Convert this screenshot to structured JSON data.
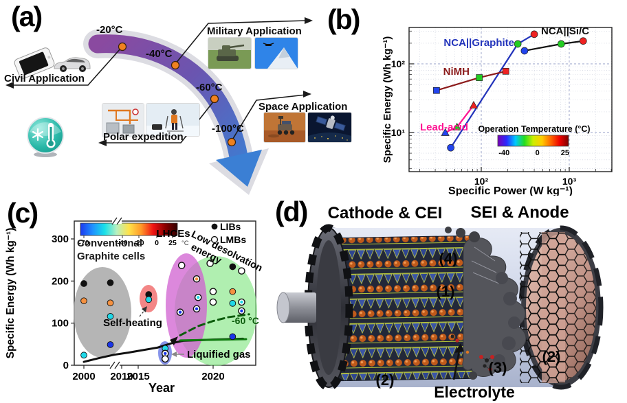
{
  "panels": {
    "a": {
      "label": "(a)",
      "temps": [
        "-20°C",
        "-40°C",
        "-60°C",
        "-100°C"
      ],
      "apps": {
        "civil": "Civil Application",
        "military": "Military Application",
        "polar": "Polar expedition",
        "space": "Space Application"
      }
    },
    "b": {
      "label": "(b)"
    },
    "c": {
      "label": "(c)"
    },
    "d": {
      "label": "(d)",
      "cathode_title": "Cathode & CEI",
      "anode_title": "SEI & Anode",
      "electrolyte": "Electrolyte",
      "num1": "(1)",
      "num2_left": "(2)",
      "num2_right": "(2)",
      "num3": "(3)",
      "num4": "(4)"
    }
  },
  "chart_data": [
    {
      "panel": "b",
      "type": "scatter",
      "xlabel": "Specific Power (W kg⁻¹)",
      "ylabel": "Specific Energy (Wh kg⁻¹)",
      "xscale": "log",
      "yscale": "log",
      "xlim": [
        15,
        3200
      ],
      "ylim": [
        2.7,
        350
      ],
      "xticks": [
        {
          "value": 100,
          "label": "10²"
        },
        {
          "value": 1000,
          "label": "10³"
        }
      ],
      "yticks": [
        {
          "value": 10,
          "label": "10¹"
        },
        {
          "value": 100,
          "label": "10²"
        }
      ],
      "series": [
        {
          "name": "NCA||Graphite",
          "label_color": "#2233bb",
          "line_color": "#2233bb",
          "marker": "circle",
          "points": [
            {
              "x": 45,
              "y": 6,
              "temp": -40,
              "color": "#2244ee"
            },
            {
              "x": 260,
              "y": 195,
              "temp": 0,
              "color": "#22cc22"
            },
            {
              "x": 400,
              "y": 270,
              "temp": 25,
              "color": "#ee2222"
            }
          ]
        },
        {
          "name": "NCA||Si/C",
          "label_color": "#111111",
          "line_color": "#111111",
          "marker": "circle",
          "points": [
            {
              "x": 310,
              "y": 155,
              "temp": -40,
              "color": "#2244ee"
            },
            {
              "x": 810,
              "y": 195,
              "temp": 0,
              "color": "#22cc22"
            },
            {
              "x": 1440,
              "y": 215,
              "temp": 25,
              "color": "#ee2222"
            }
          ]
        },
        {
          "name": "NiMH",
          "label_color": "#8b1a1a",
          "line_color": "#8b1a1a",
          "marker": "square",
          "points": [
            {
              "x": 31,
              "y": 41,
              "temp": -40,
              "color": "#2244ee"
            },
            {
              "x": 95,
              "y": 63,
              "temp": 0,
              "color": "#22cc22"
            },
            {
              "x": 190,
              "y": 78,
              "temp": 25,
              "color": "#ee2222"
            }
          ]
        },
        {
          "name": "Lead-acid",
          "label_color": "#ff1493",
          "line_color": "#ff1493",
          "marker": "triangle",
          "points": [
            {
              "x": 39,
              "y": 10,
              "temp": -40,
              "color": "#2244ee"
            },
            {
              "x": 53,
              "y": 12,
              "temp": 0,
              "color": "#22cc22"
            },
            {
              "x": 82,
              "y": 25,
              "temp": 25,
              "color": "#ee2222"
            }
          ]
        }
      ],
      "colorbar": {
        "title": "Operation Temperature (°C)",
        "ticks": [
          "-40",
          "0",
          "25"
        ],
        "gradient": [
          "#7a00b4",
          "#2a2aff",
          "#00c8ff",
          "#22dd22",
          "#ccee00",
          "#ffcc00",
          "#ff6600",
          "#ee0000",
          "#7a0000"
        ]
      }
    },
    {
      "panel": "c",
      "type": "scatter",
      "xlabel": "Year",
      "ylabel": "Specific Energy (Wh kg⁻¹)",
      "xticks": [
        2000,
        2010,
        2015,
        2020
      ],
      "yticks": [
        0,
        100,
        200,
        300
      ],
      "ylim": [
        0,
        340
      ],
      "x_axis_break": true,
      "colorbar": {
        "ticks": [
          "-70",
          "-40",
          "-20",
          "0",
          "25"
        ],
        "unit": "°C",
        "gradient": [
          "#1c39ee",
          "#1e90ff",
          "#19e0e8",
          "#b8f0c0",
          "#ffe24a",
          "#ff9a2a",
          "#f01414",
          "#8b0000",
          "#300000"
        ]
      },
      "legend": [
        {
          "label": "LIBs",
          "marker": "filled-circle"
        },
        {
          "label": "LMBs",
          "marker": "open-circle"
        }
      ],
      "regions": [
        {
          "name": "Conventional Graphite cells",
          "color": "#a8a8a8"
        },
        {
          "name": "LHCEs",
          "color": "#d060d0"
        },
        {
          "name": "Low desolvation energy",
          "color": "#8ee88e"
        },
        {
          "name": "Self-heating",
          "color": "#f28080"
        },
        {
          "name": "Liquified gas",
          "color": "#7a88e8"
        }
      ],
      "annotations": {
        "conventional_line1": "Conventional",
        "conventional_line2": "Graphite cells",
        "lhces": "LHCEs",
        "low_desolvation_line1": "Low desolvation",
        "low_desolvation_line2": "energy",
        "self_heating": "Self-heating",
        "liquified_gas": "Liquified gas",
        "dashed_curve_label": "-60 °C"
      },
      "points": [
        {
          "year": 2000,
          "E": 194,
          "color": "#111111",
          "open": false
        },
        {
          "year": 2000,
          "E": 153,
          "color": "#f59140",
          "open": false
        },
        {
          "year": 2000,
          "E": 24,
          "color": "#20d8e8",
          "open": false
        },
        {
          "year": 2007,
          "E": 196,
          "color": "#111111",
          "open": false
        },
        {
          "year": 2007,
          "E": 148,
          "color": "#f59140",
          "open": false
        },
        {
          "year": 2007,
          "E": 116,
          "color": "#20d8e8",
          "open": false
        },
        {
          "year": 2007,
          "E": 49,
          "color": "#1a35e8",
          "open": false
        },
        {
          "year": 2015.7,
          "E": 168,
          "color": "#111111",
          "open": false
        },
        {
          "year": 2015.7,
          "E": 156,
          "color": "#20d8e8",
          "open": false
        },
        {
          "year": 2016.8,
          "E": 40,
          "color": "#20d8e8",
          "open": false
        },
        {
          "year": 2016.8,
          "E": 28,
          "color": "#1a35e8",
          "open": true
        },
        {
          "year": 2016.8,
          "E": 15,
          "color": "white",
          "open": true
        },
        {
          "year": 2017.9,
          "E": 237,
          "color": "white",
          "open": true
        },
        {
          "year": 2017.8,
          "E": 126,
          "color": "#1a35e8",
          "open": true
        },
        {
          "year": 2018.9,
          "E": 205,
          "color": "#f59140",
          "open": true
        },
        {
          "year": 2019,
          "E": 161,
          "color": "#20d8e8",
          "open": true
        },
        {
          "year": 2018.9,
          "E": 134,
          "color": "#1a35e8",
          "open": true
        },
        {
          "year": 2019.8,
          "E": 242,
          "color": "white",
          "open": true
        },
        {
          "year": 2020,
          "E": 175,
          "color": "white",
          "open": true
        },
        {
          "year": 2020,
          "E": 150,
          "color": "white",
          "open": true
        },
        {
          "year": 2021.3,
          "E": 234,
          "color": "#111111",
          "open": false
        },
        {
          "year": 2021.3,
          "E": 175,
          "color": "#f59140",
          "open": false
        },
        {
          "year": 2021.3,
          "E": 147,
          "color": "#20d8e8",
          "open": false
        },
        {
          "year": 2021.9,
          "E": 224,
          "color": "white",
          "open": true
        },
        {
          "year": 2021.9,
          "E": 150,
          "color": "#20d8e8",
          "open": true
        },
        {
          "year": 2021.9,
          "E": 129,
          "color": "#1a35e8",
          "open": true
        },
        {
          "year": 2021.3,
          "E": 68,
          "color": "#1a35e8",
          "open": false
        }
      ],
      "curves": [
        {
          "name": "LIB progress",
          "style": "solid",
          "color": "#111111",
          "width": 3,
          "points": [
            [
              2000,
              8
            ],
            [
              2004,
              17
            ],
            [
              2008,
              25
            ],
            [
              2012,
              30
            ],
            [
              2015,
              34
            ],
            [
              2016.3,
              42
            ],
            [
              2017.3,
              53
            ],
            [
              2018,
              58
            ],
            [
              2020,
              61
            ],
            [
              2022,
              63
            ]
          ]
        },
        {
          "name": "recent flat",
          "style": "solid",
          "color": "#0f7a0f",
          "width": 3,
          "points": [
            [
              2017.8,
              59
            ],
            [
              2022.2,
              62
            ]
          ]
        },
        {
          "name": "-60 °C trend",
          "style": "dashed",
          "color": "#0c5c0c",
          "width": 3,
          "points": [
            [
              2017.8,
              71
            ],
            [
              2019,
              93
            ],
            [
              2020,
              105
            ],
            [
              2021,
              114
            ],
            [
              2022.4,
              121
            ]
          ]
        }
      ]
    }
  ]
}
